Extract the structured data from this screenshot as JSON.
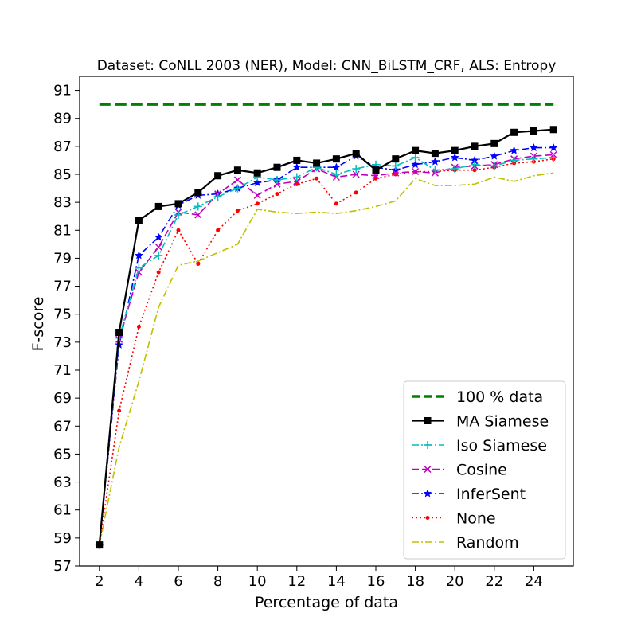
{
  "chart_data": {
    "type": "line",
    "title": "Dataset: CoNLL 2003 (NER), Model: CNN_BiLSTM_CRF, ALS: Entropy",
    "xlabel": "Percentage of data",
    "ylabel": "F-score",
    "xlim": [
      1,
      26
    ],
    "ylim": [
      57,
      92
    ],
    "xticks": [
      2,
      4,
      6,
      8,
      10,
      12,
      14,
      16,
      18,
      20,
      22,
      24
    ],
    "yticks": [
      57,
      59,
      61,
      63,
      65,
      67,
      69,
      71,
      73,
      75,
      77,
      79,
      81,
      83,
      85,
      87,
      89,
      91
    ],
    "grid": false,
    "legend_position": "lower-right",
    "x": [
      2,
      3,
      4,
      5,
      6,
      7,
      8,
      9,
      10,
      11,
      12,
      13,
      14,
      15,
      16,
      17,
      18,
      19,
      20,
      21,
      22,
      23,
      24,
      25
    ],
    "series": [
      {
        "name": "100 % data",
        "color": "#008000",
        "dash": "dashed",
        "marker": "none",
        "values": [
          90.0,
          90.0,
          90.0,
          90.0,
          90.0,
          90.0,
          90.0,
          90.0,
          90.0,
          90.0,
          90.0,
          90.0,
          90.0,
          90.0,
          90.0,
          90.0,
          90.0,
          90.0,
          90.0,
          90.0,
          90.0,
          90.0,
          90.0,
          90.0
        ]
      },
      {
        "name": "MA Siamese",
        "color": "#000000",
        "dash": "solid",
        "marker": "square",
        "values": [
          58.5,
          73.7,
          81.7,
          82.7,
          82.9,
          83.7,
          84.9,
          85.3,
          85.1,
          85.5,
          86.0,
          85.8,
          86.1,
          86.5,
          85.3,
          86.1,
          86.7,
          86.5,
          86.7,
          87.0,
          87.2,
          88.0,
          88.1,
          88.2
        ]
      },
      {
        "name": "Iso Siamese",
        "color": "#00bfbf",
        "dash": "dashdot",
        "marker": "plus",
        "values": [
          58.5,
          73.3,
          78.3,
          79.2,
          82.1,
          82.7,
          83.4,
          84.0,
          84.8,
          84.6,
          84.8,
          85.5,
          85.0,
          85.4,
          85.7,
          85.6,
          86.2,
          85.3,
          85.4,
          85.7,
          85.6,
          86.0,
          86.1,
          86.2
        ]
      },
      {
        "name": "Cosine",
        "color": "#bf00bf",
        "dash": "dashed",
        "marker": "x",
        "values": [
          58.5,
          73.2,
          78.0,
          79.8,
          82.3,
          82.1,
          83.6,
          84.6,
          83.5,
          84.3,
          84.5,
          85.4,
          84.8,
          85.0,
          84.9,
          85.1,
          85.2,
          85.1,
          85.5,
          85.6,
          85.7,
          86.1,
          86.3,
          86.4
        ]
      },
      {
        "name": "InferSent",
        "color": "#0000ff",
        "dash": "dashdot",
        "marker": "star",
        "values": [
          58.5,
          72.8,
          79.2,
          80.5,
          82.8,
          83.5,
          83.6,
          84.0,
          84.4,
          84.6,
          85.5,
          85.5,
          85.5,
          86.3,
          85.5,
          85.3,
          85.7,
          85.9,
          86.2,
          86.0,
          86.3,
          86.7,
          86.9,
          86.9
        ]
      },
      {
        "name": "None",
        "color": "#ff0000",
        "dash": "dotted",
        "marker": "dot",
        "values": [
          58.5,
          68.1,
          74.1,
          78.0,
          81.0,
          78.6,
          81.0,
          82.4,
          82.9,
          83.6,
          84.3,
          84.7,
          82.9,
          83.7,
          84.7,
          85.0,
          85.2,
          85.2,
          85.3,
          85.3,
          85.5,
          85.8,
          85.9,
          86.1
        ]
      },
      {
        "name": "Random",
        "color": "#bfbf00",
        "dash": "dashdot",
        "marker": "none",
        "values": [
          58.5,
          65.5,
          70.2,
          75.5,
          78.5,
          78.8,
          79.4,
          80.0,
          82.5,
          82.3,
          82.2,
          82.3,
          82.2,
          82.4,
          82.7,
          83.1,
          84.7,
          84.2,
          84.2,
          84.3,
          84.8,
          84.5,
          84.9,
          85.1
        ]
      }
    ]
  }
}
